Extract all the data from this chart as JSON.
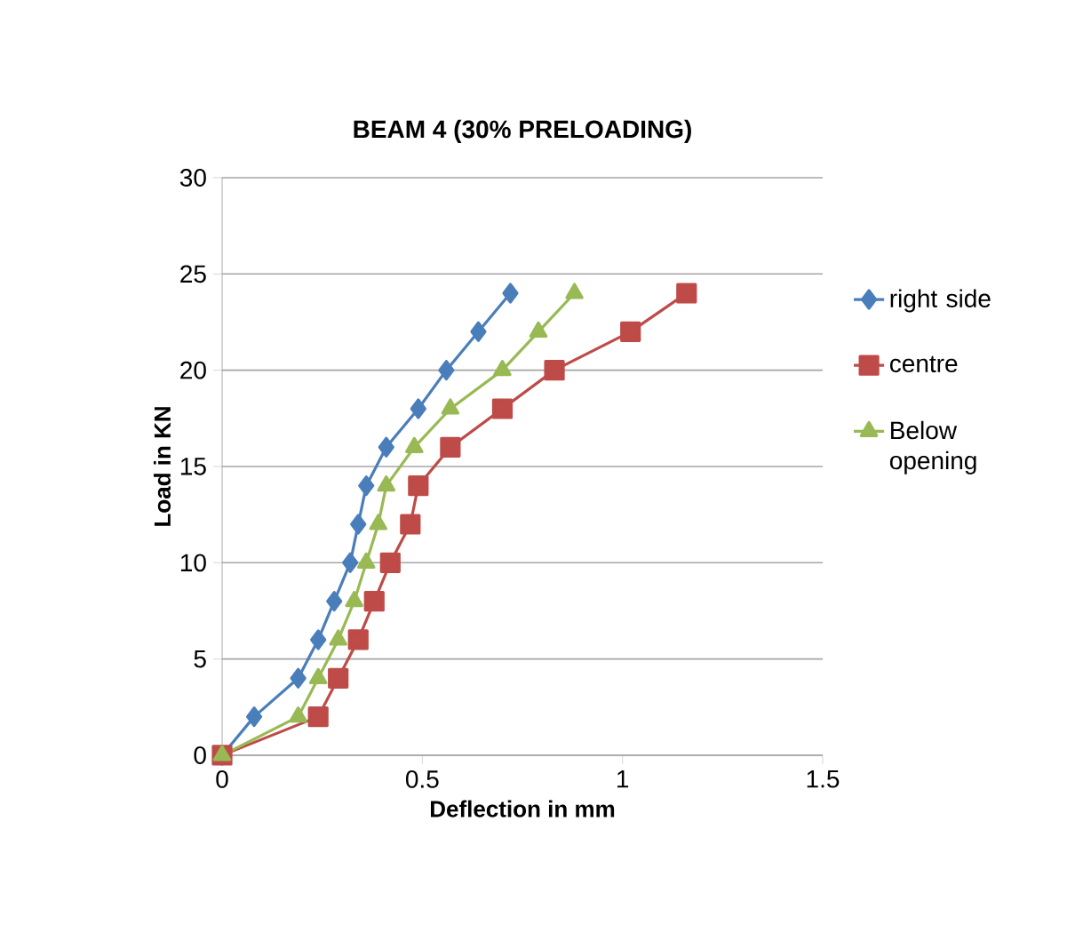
{
  "chart_data": {
    "type": "line",
    "title": "BEAM 4 (30% PRELOADING)",
    "xlabel": "Deflection in mm",
    "ylabel": "Load in KN",
    "xlim": [
      0,
      1.5
    ],
    "xticks": [
      0,
      0.5,
      1,
      1.5
    ],
    "ylim": [
      0,
      30
    ],
    "yticks": [
      0,
      5,
      10,
      15,
      20,
      25,
      30
    ],
    "grid": "y",
    "legend": "right",
    "line_style": "solid",
    "series": [
      {
        "name": "right side",
        "color": "#4a7ebb",
        "marker": "diamond",
        "x": [
          0,
          0.08,
          0.19,
          0.24,
          0.28,
          0.32,
          0.34,
          0.36,
          0.41,
          0.49,
          0.56,
          0.64,
          0.72
        ],
        "values": [
          0,
          2,
          4,
          6,
          8,
          10,
          12,
          14,
          16,
          18,
          20,
          22,
          24
        ]
      },
      {
        "name": "centre",
        "color": "#be4b48",
        "marker": "square",
        "x": [
          0,
          0.24,
          0.29,
          0.34,
          0.38,
          0.42,
          0.47,
          0.49,
          0.57,
          0.7,
          0.83,
          1.02,
          1.16
        ],
        "values": [
          0,
          2,
          4,
          6,
          8,
          10,
          12,
          14,
          16,
          18,
          20,
          22,
          24
        ]
      },
      {
        "name": "Below opening",
        "color": "#98b954",
        "marker": "triangle",
        "x": [
          0,
          0.19,
          0.24,
          0.29,
          0.33,
          0.36,
          0.39,
          0.41,
          0.48,
          0.57,
          0.7,
          0.79,
          0.88
        ],
        "values": [
          0,
          2,
          4,
          6,
          8,
          10,
          12,
          14,
          16,
          18,
          20,
          22,
          24
        ]
      }
    ]
  }
}
